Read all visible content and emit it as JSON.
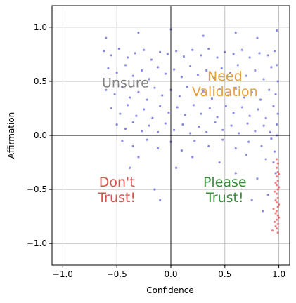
{
  "chart_data": {
    "type": "scatter",
    "xlabel": "Confidence",
    "ylabel": "Affirmation",
    "xlim": [
      -1.1,
      1.1
    ],
    "ylim": [
      -1.2,
      1.2
    ],
    "grid": true,
    "x_ticks": [
      "−1.0",
      "−0.5",
      "0.0",
      "0.5",
      "1.0"
    ],
    "x_tick_values": [
      -1.0,
      -0.5,
      0.0,
      0.5,
      1.0
    ],
    "y_ticks": [
      "−1.0",
      "−0.5",
      "0.0",
      "0.5",
      "1.0"
    ],
    "y_tick_values": [
      -1.0,
      -0.5,
      0.0,
      0.5,
      1.0
    ],
    "quadrant_labels": [
      {
        "lines": [
          "Unsure"
        ],
        "x": -0.42,
        "y": 0.49,
        "color": "#808080"
      },
      {
        "lines": [
          "Need",
          "Validation"
        ],
        "x": 0.5,
        "y": 0.48,
        "color": "#e6a03c"
      },
      {
        "lines": [
          "Don't",
          "Trust!"
        ],
        "x": -0.5,
        "y": -0.5,
        "color": "#d9534f"
      },
      {
        "lines": [
          "Please",
          "Trust!"
        ],
        "x": 0.5,
        "y": -0.5,
        "color": "#3a8e3a"
      }
    ],
    "series": [
      {
        "color": "#2b2bc8",
        "points": [
          [
            -0.62,
            0.78
          ],
          [
            -0.55,
            0.74
          ],
          [
            -0.48,
            0.8
          ],
          [
            -0.4,
            0.72
          ],
          [
            -0.33,
            0.76
          ],
          [
            -0.25,
            0.79
          ],
          [
            -0.18,
            0.7
          ],
          [
            -0.1,
            0.77
          ],
          [
            -0.03,
            0.75
          ],
          [
            0.05,
            0.78
          ],
          [
            0.12,
            0.73
          ],
          [
            0.2,
            0.79
          ],
          [
            0.28,
            0.74
          ],
          [
            0.35,
            0.8
          ],
          [
            0.43,
            0.72
          ],
          [
            0.5,
            0.77
          ],
          [
            0.58,
            0.75
          ],
          [
            0.66,
            0.79
          ],
          [
            0.73,
            0.72
          ],
          [
            0.82,
            0.76
          ],
          [
            0.9,
            0.74
          ],
          [
            0.96,
            0.78
          ],
          [
            -0.58,
            0.62
          ],
          [
            -0.5,
            0.58
          ],
          [
            -0.42,
            0.65
          ],
          [
            -0.35,
            0.55
          ],
          [
            -0.27,
            0.6
          ],
          [
            -0.2,
            0.52
          ],
          [
            -0.12,
            0.63
          ],
          [
            -0.05,
            0.57
          ],
          [
            0.03,
            0.61
          ],
          [
            0.1,
            0.54
          ],
          [
            0.18,
            0.64
          ],
          [
            0.25,
            0.56
          ],
          [
            0.33,
            0.6
          ],
          [
            0.4,
            0.53
          ],
          [
            0.47,
            0.62
          ],
          [
            0.55,
            0.58
          ],
          [
            0.62,
            0.65
          ],
          [
            0.7,
            0.55
          ],
          [
            0.78,
            0.6
          ],
          [
            0.86,
            0.52
          ],
          [
            0.93,
            0.63
          ],
          [
            -0.6,
            0.42
          ],
          [
            -0.52,
            0.38
          ],
          [
            -0.45,
            0.45
          ],
          [
            -0.38,
            0.35
          ],
          [
            -0.3,
            0.4
          ],
          [
            -0.22,
            0.33
          ],
          [
            -0.15,
            0.44
          ],
          [
            -0.08,
            0.37
          ],
          [
            0.0,
            0.42
          ],
          [
            0.08,
            0.36
          ],
          [
            0.15,
            0.45
          ],
          [
            0.23,
            0.38
          ],
          [
            0.3,
            0.41
          ],
          [
            0.38,
            0.34
          ],
          [
            0.45,
            0.43
          ],
          [
            0.53,
            0.37
          ],
          [
            0.6,
            0.44
          ],
          [
            0.68,
            0.35
          ],
          [
            0.75,
            0.4
          ],
          [
            0.83,
            0.33
          ],
          [
            0.91,
            0.42
          ],
          [
            0.97,
            0.38
          ],
          [
            -0.55,
            0.25
          ],
          [
            -0.47,
            0.2
          ],
          [
            -0.4,
            0.28
          ],
          [
            -0.32,
            0.18
          ],
          [
            -0.25,
            0.24
          ],
          [
            -0.17,
            0.16
          ],
          [
            -0.1,
            0.27
          ],
          [
            -0.02,
            0.21
          ],
          [
            0.06,
            0.26
          ],
          [
            0.13,
            0.19
          ],
          [
            0.21,
            0.28
          ],
          [
            0.28,
            0.2
          ],
          [
            0.36,
            0.25
          ],
          [
            0.43,
            0.17
          ],
          [
            0.51,
            0.27
          ],
          [
            0.58,
            0.21
          ],
          [
            0.66,
            0.26
          ],
          [
            0.73,
            0.18
          ],
          [
            0.81,
            0.24
          ],
          [
            0.88,
            0.16
          ],
          [
            0.95,
            0.27
          ],
          [
            -0.5,
            0.1
          ],
          [
            -0.42,
            0.06
          ],
          [
            -0.35,
            0.12
          ],
          [
            -0.27,
            0.04
          ],
          [
            -0.2,
            0.09
          ],
          [
            -0.12,
            0.03
          ],
          [
            -0.05,
            0.11
          ],
          [
            0.03,
            0.05
          ],
          [
            0.11,
            0.1
          ],
          [
            0.18,
            0.02
          ],
          [
            0.26,
            0.08
          ],
          [
            0.33,
            0.03
          ],
          [
            0.41,
            0.12
          ],
          [
            0.48,
            0.05
          ],
          [
            0.56,
            0.09
          ],
          [
            0.63,
            0.02
          ],
          [
            0.71,
            0.11
          ],
          [
            0.78,
            0.04
          ],
          [
            0.86,
            0.09
          ],
          [
            0.92,
            0.03
          ],
          [
            0.98,
            0.1
          ],
          [
            -0.45,
            -0.05
          ],
          [
            -0.35,
            -0.1
          ],
          [
            -0.22,
            -0.04
          ],
          [
            -0.12,
            -0.12
          ],
          [
            0.0,
            -0.06
          ],
          [
            0.1,
            -0.14
          ],
          [
            0.22,
            -0.05
          ],
          [
            0.35,
            -0.1
          ],
          [
            0.48,
            -0.04
          ],
          [
            0.6,
            -0.12
          ],
          [
            0.72,
            -0.06
          ],
          [
            0.84,
            -0.1
          ],
          [
            0.93,
            -0.03
          ],
          [
            -0.6,
            0.9
          ],
          [
            -0.3,
            0.95
          ],
          [
            0.0,
            0.98
          ],
          [
            0.3,
            0.92
          ],
          [
            0.6,
            0.95
          ],
          [
            0.8,
            0.9
          ],
          [
            0.98,
            0.97
          ],
          [
            0.2,
            -0.2
          ],
          [
            0.45,
            -0.25
          ],
          [
            0.7,
            -0.18
          ],
          [
            0.88,
            -0.22
          ],
          [
            0.6,
            -0.35
          ],
          [
            0.8,
            -0.4
          ],
          [
            0.9,
            -0.55
          ],
          [
            0.85,
            -0.7
          ],
          [
            0.75,
            -0.6
          ],
          [
            0.95,
            -0.25
          ],
          [
            0.97,
            -0.35
          ],
          [
            0.96,
            -0.15
          ],
          [
            0.98,
            0.0
          ],
          [
            0.99,
            0.2
          ],
          [
            0.99,
            0.5
          ],
          [
            0.98,
            0.65
          ],
          [
            -0.15,
            -0.5
          ],
          [
            -0.3,
            -0.2
          ],
          [
            -0.38,
            -0.3
          ],
          [
            0.05,
            -0.3
          ],
          [
            -0.1,
            -0.6
          ]
        ]
      },
      {
        "color": "#e6202a",
        "points": [
          [
            0.98,
            -0.22
          ],
          [
            0.99,
            -0.26
          ],
          [
            0.98,
            -0.3
          ],
          [
            0.99,
            -0.34
          ],
          [
            0.98,
            -0.38
          ],
          [
            0.99,
            -0.42
          ],
          [
            0.98,
            -0.46
          ],
          [
            0.99,
            -0.5
          ],
          [
            0.98,
            -0.54
          ],
          [
            0.99,
            -0.58
          ],
          [
            0.98,
            -0.62
          ],
          [
            0.99,
            -0.66
          ],
          [
            0.98,
            -0.7
          ],
          [
            0.99,
            -0.74
          ],
          [
            0.98,
            -0.78
          ],
          [
            0.99,
            -0.82
          ],
          [
            0.98,
            -0.86
          ],
          [
            0.99,
            -0.9
          ],
          [
            0.97,
            -0.44
          ],
          [
            0.97,
            -0.6
          ],
          [
            0.97,
            -0.72
          ],
          [
            0.96,
            -0.52
          ],
          [
            0.96,
            -0.8
          ],
          [
            1.0,
            -0.48
          ],
          [
            1.0,
            -0.64
          ],
          [
            1.0,
            -0.76
          ],
          [
            1.0,
            -0.36
          ],
          [
            0.95,
            -0.68
          ],
          [
            0.94,
            -0.88
          ],
          [
            0.97,
            -0.84
          ]
        ]
      }
    ]
  }
}
